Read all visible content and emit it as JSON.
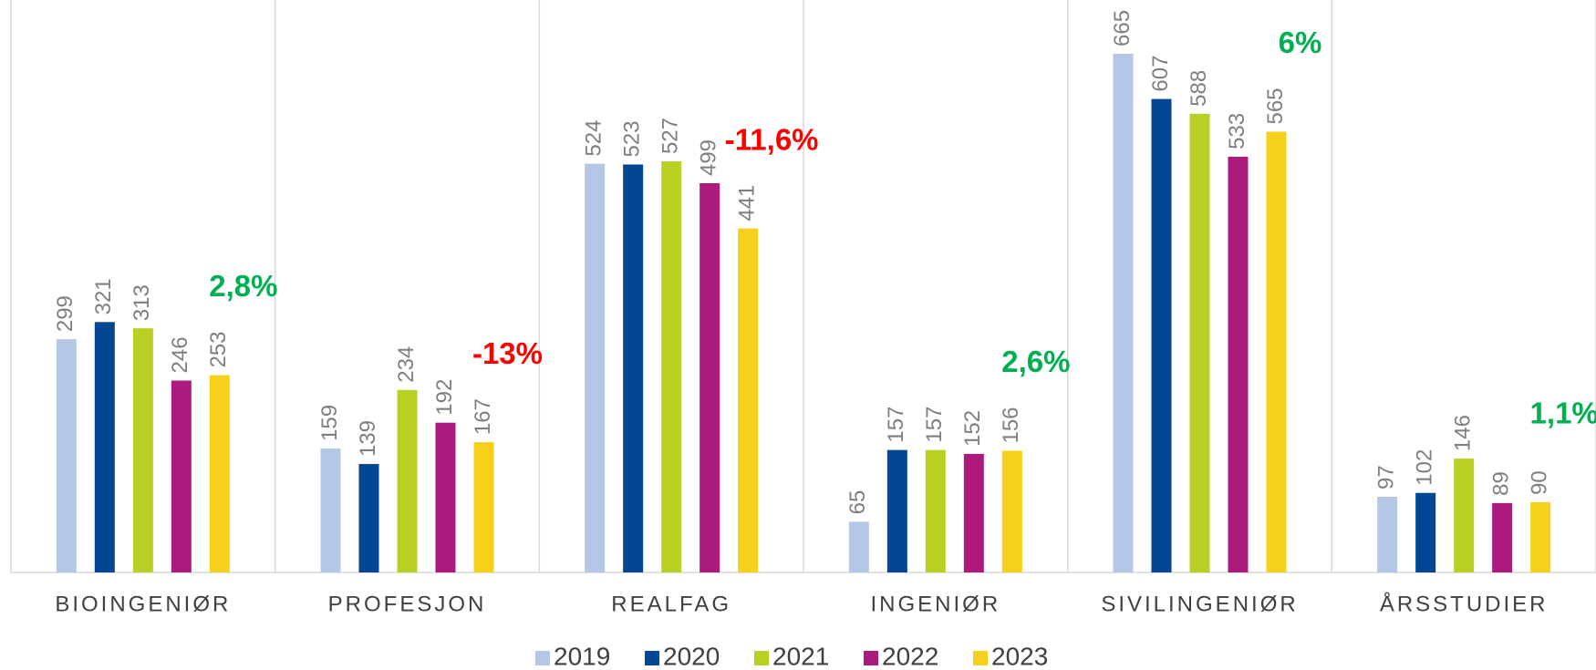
{
  "chart_data": {
    "type": "bar",
    "categories": [
      "BIOINGENIØR",
      "PROFESJON",
      "REALFAG",
      "INGENIØR",
      "SIVILINGENIØR",
      "ÅRSSTUDIER"
    ],
    "series": [
      {
        "name": "2019",
        "color": "#b4c7e7",
        "values": [
          299,
          159,
          524,
          65,
          665,
          97
        ]
      },
      {
        "name": "2020",
        "color": "#034694",
        "values": [
          321,
          139,
          523,
          157,
          607,
          102
        ]
      },
      {
        "name": "2021",
        "color": "#b9cf24",
        "values": [
          313,
          234,
          527,
          157,
          588,
          146
        ]
      },
      {
        "name": "2022",
        "color": "#ad1a7e",
        "values": [
          246,
          192,
          499,
          152,
          533,
          89
        ]
      },
      {
        "name": "2023",
        "color": "#f6d01b",
        "values": [
          253,
          167,
          441,
          156,
          565,
          90
        ]
      }
    ],
    "annotations": [
      {
        "text": "2,8%",
        "color": "#00b050"
      },
      {
        "text": "-13%",
        "color": "#ff0000"
      },
      {
        "text": "-11,6%",
        "color": "#ff0000"
      },
      {
        "text": "2,6%",
        "color": "#00b050"
      },
      {
        "text": "6%",
        "color": "#00b050"
      },
      {
        "text": "1,1%",
        "color": "#00b050"
      }
    ],
    "ylim": [
      0,
      700
    ],
    "legend": "bottom"
  }
}
